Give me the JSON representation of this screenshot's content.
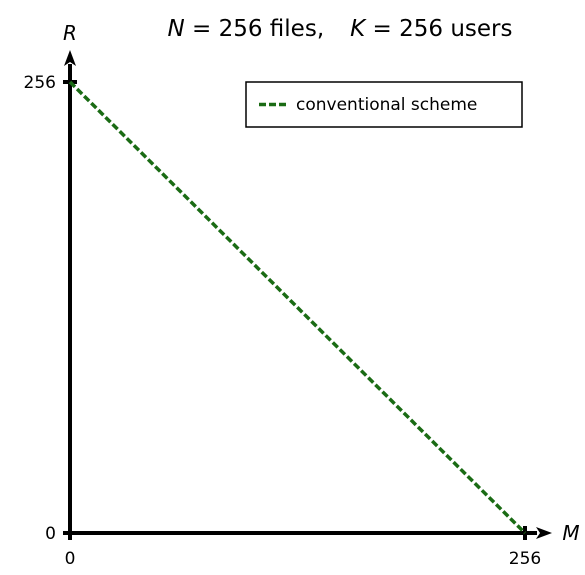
{
  "chart_data": {
    "type": "line",
    "title": {
      "n_symbol": "N",
      "n_text": " = 256 files,",
      "k_symbol": "K",
      "k_text": " = 256 users"
    },
    "xlabel": "M",
    "ylabel": "R",
    "xlim": [
      0,
      256
    ],
    "ylim": [
      0,
      256
    ],
    "x_ticks": [
      0,
      256
    ],
    "y_ticks": [
      0,
      256
    ],
    "x_tick_labels": [
      "0",
      "256"
    ],
    "y_tick_labels": [
      "0",
      "256"
    ],
    "grid": false,
    "legend_position": "top-right",
    "series": [
      {
        "name": "conventional scheme",
        "color": "#1a6b14",
        "dash": "dashed",
        "x": [
          0,
          256
        ],
        "y": [
          256,
          0
        ]
      }
    ]
  }
}
